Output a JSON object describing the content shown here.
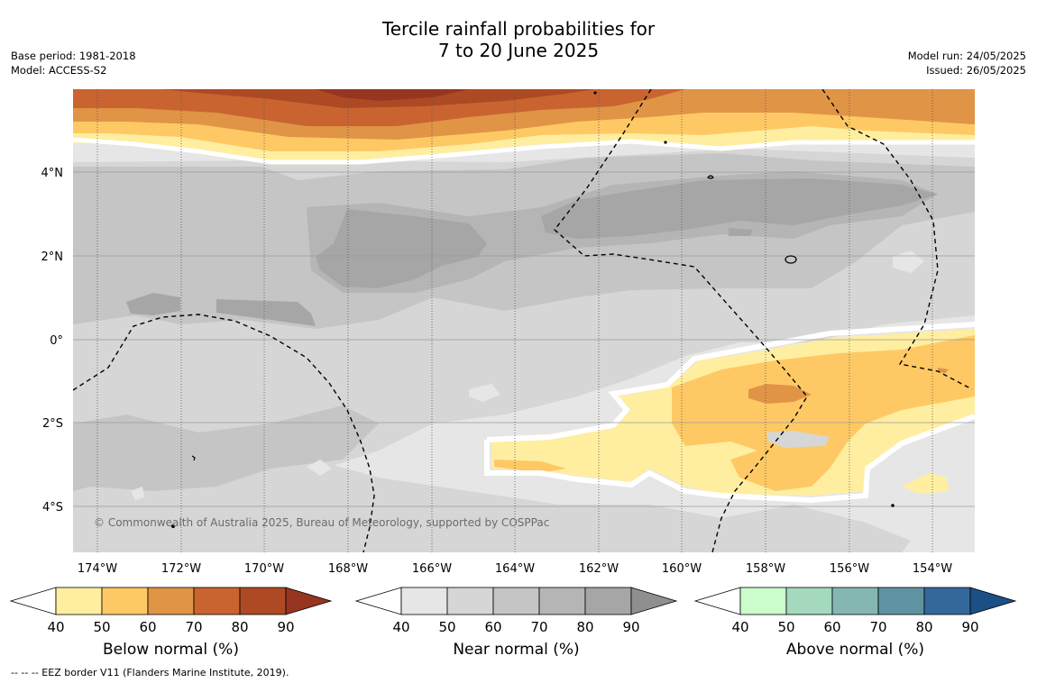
{
  "header": {
    "title_line1": "Tercile rainfall probabilities for",
    "title_line2": "7 to 20 June 2025",
    "base_period": "Base period: 1981-2018",
    "model": "Model: ACCESS-S2",
    "model_run": "Model run: 24/05/2025",
    "issued": "Issued: 26/05/2025"
  },
  "map": {
    "lat_labels": [
      "4°N",
      "2°N",
      "0°",
      "2°S",
      "4°S"
    ],
    "lon_labels": [
      "174°W",
      "172°W",
      "170°W",
      "168°W",
      "166°W",
      "164°W",
      "162°W",
      "160°W",
      "158°W",
      "156°W",
      "154°W"
    ],
    "copyright": "© Commonwealth of Australia 2025, Bureau of Meteorology, supported by COSPPac"
  },
  "colorbars": [
    {
      "label": "Below normal (%)",
      "ticks": [
        "40",
        "50",
        "60",
        "70",
        "80",
        "90"
      ],
      "colors": [
        "#ffeea0",
        "#fec964",
        "#e09445",
        "#c96431",
        "#ad4a24",
        "#973520"
      ]
    },
    {
      "label": "Near normal (%)",
      "ticks": [
        "40",
        "50",
        "60",
        "70",
        "80",
        "90"
      ],
      "colors": [
        "#e6e6e6",
        "#d6d6d6",
        "#c5c5c5",
        "#b5b5b5",
        "#a6a6a6",
        "#8f8f8f"
      ]
    },
    {
      "label": "Above normal (%)",
      "ticks": [
        "40",
        "50",
        "60",
        "70",
        "80",
        "90"
      ],
      "colors": [
        "#cbfdcb",
        "#a4d9be",
        "#84b7b2",
        "#5f93a1",
        "#34689b",
        "#1b4f86"
      ]
    }
  ],
  "footnote": "--  --  -- EEZ border V11 (Flanders Marine Institute, 2019)."
}
